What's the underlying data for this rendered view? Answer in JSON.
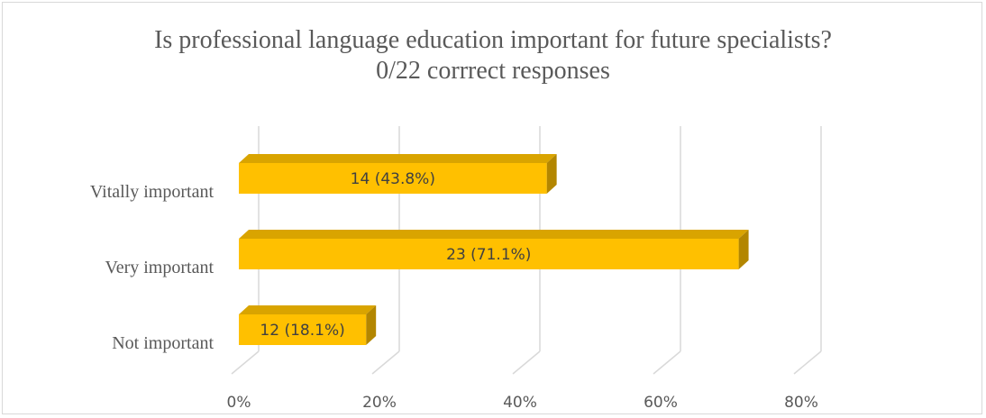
{
  "chart_data": {
    "type": "bar",
    "orientation": "horizontal",
    "style": "3d",
    "title": "Is professional language education important for future specialists?",
    "subtitle": "0/22 corrrect responses",
    "categories": [
      "Vitally important",
      "Very important",
      "Not important"
    ],
    "values": [
      43.8,
      71.1,
      18.1
    ],
    "counts": [
      14,
      23,
      12
    ],
    "data_labels": [
      "14 (43.8%)",
      "23 (71.1%)",
      "12 (18.1%)"
    ],
    "xlim": [
      0,
      80
    ],
    "x_ticks": [
      0,
      20,
      40,
      60,
      80
    ],
    "x_tick_labels": [
      "0%",
      "20%",
      "40%",
      "60%",
      "80%"
    ],
    "grid": true,
    "legend": "none",
    "colors": {
      "bar_front": "#ffc000",
      "bar_top": "#d9a400",
      "bar_side": "#b38600",
      "gridline": "#d9d9d9",
      "text": "#595959"
    }
  }
}
